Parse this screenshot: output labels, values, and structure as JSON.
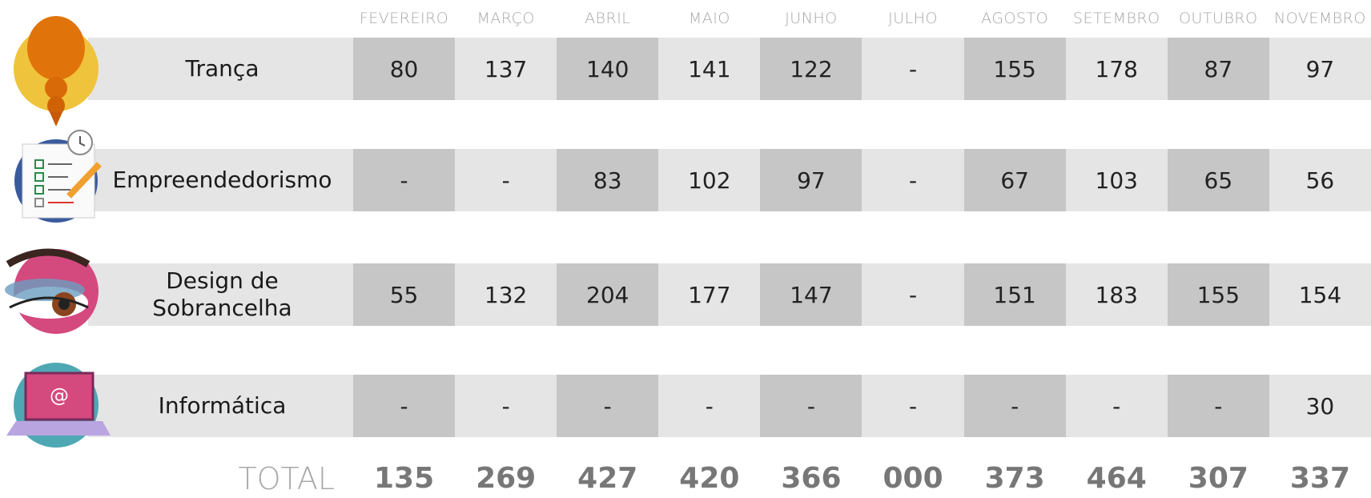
{
  "table": {
    "columns": [
      "FEVEREIRO",
      "MARÇO",
      "ABRIL",
      "MAIO",
      "JUNHO",
      "JULHO",
      "AGOSTO",
      "SETEMBRO",
      "OUTUBRO",
      "NOVEMBRO"
    ],
    "rows": [
      {
        "label": "Trança",
        "cells": [
          "80",
          "137",
          "140",
          "141",
          "122",
          "-",
          "155",
          "178",
          "87",
          "97"
        ]
      },
      {
        "label": "Empreendedorismo",
        "cells": [
          "-",
          "-",
          "83",
          "102",
          "97",
          "-",
          "67",
          "103",
          "65",
          "56"
        ]
      },
      {
        "label": "Design de Sobrancelha",
        "cells": [
          "55",
          "132",
          "204",
          "177",
          "147",
          "-",
          "151",
          "183",
          "155",
          "154"
        ]
      },
      {
        "label": "Informática",
        "cells": [
          "-",
          "-",
          "-",
          "-",
          "-",
          "-",
          "-",
          "-",
          "-",
          "30"
        ]
      }
    ],
    "total": {
      "label": "TOTAL",
      "values": [
        "135",
        "269",
        "427",
        "420",
        "366",
        "000",
        "373",
        "464",
        "307",
        "337"
      ]
    }
  }
}
